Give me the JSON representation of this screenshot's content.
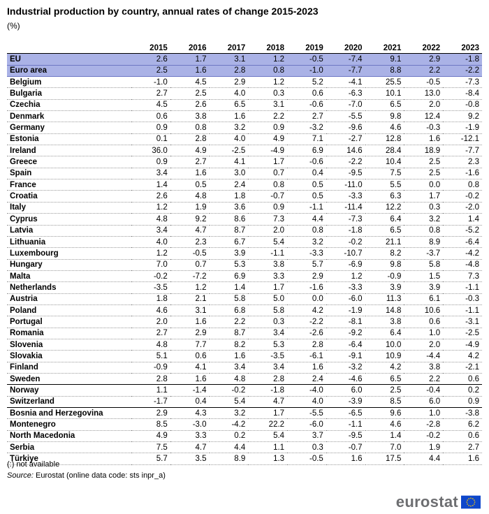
{
  "title": "Industrial production by country, annual rates of change 2015-2023",
  "unit": "(%)",
  "colors": {
    "aggregate_row": "#aab2e6",
    "logo_text": "#6d6e71",
    "flag_blue": "#0e47cb",
    "flag_star": "#ffcc00"
  },
  "columns": [
    "",
    "2015",
    "2016",
    "2017",
    "2018",
    "2019",
    "2020",
    "2021",
    "2022",
    "2023"
  ],
  "rows": [
    {
      "country": "EU",
      "values": [
        "2.6",
        "1.7",
        "3.1",
        "1.2",
        "-0.5",
        "-7.4",
        "9.1",
        "2.9",
        "-1.8"
      ]
    },
    {
      "country": "Euro area",
      "values": [
        "2.5",
        "1.6",
        "2.8",
        "0.8",
        "-1.0",
        "-7.7",
        "8.8",
        "2.2",
        "-2.2"
      ]
    },
    {
      "country": "Belgium",
      "values": [
        "-1.0",
        "4.5",
        "2.9",
        "1.2",
        "5.2",
        "-4.1",
        "25.5",
        "-0.5",
        "-7.3"
      ]
    },
    {
      "country": "Bulgaria",
      "values": [
        "2.7",
        "2.5",
        "4.0",
        "0.3",
        "0.6",
        "-6.3",
        "10.1",
        "13.0",
        "-8.4"
      ]
    },
    {
      "country": "Czechia",
      "values": [
        "4.5",
        "2.6",
        "6.5",
        "3.1",
        "-0.6",
        "-7.0",
        "6.5",
        "2.0",
        "-0.8"
      ]
    },
    {
      "country": "Denmark",
      "values": [
        "0.6",
        "3.8",
        "1.6",
        "2.2",
        "2.7",
        "-5.5",
        "9.8",
        "12.4",
        "9.2"
      ]
    },
    {
      "country": "Germany",
      "values": [
        "0.9",
        "0.8",
        "3.2",
        "0.9",
        "-3.2",
        "-9.6",
        "4.6",
        "-0.3",
        "-1.9"
      ]
    },
    {
      "country": "Estonia",
      "values": [
        "0.1",
        "2.8",
        "4.0",
        "4.9",
        "7.1",
        "-2.7",
        "12.8",
        "1.6",
        "-12.1"
      ]
    },
    {
      "country": "Ireland",
      "values": [
        "36.0",
        "4.9",
        "-2.5",
        "-4.9",
        "6.9",
        "14.6",
        "28.4",
        "18.9",
        "-7.7"
      ]
    },
    {
      "country": "Greece",
      "values": [
        "0.9",
        "2.7",
        "4.1",
        "1.7",
        "-0.6",
        "-2.2",
        "10.4",
        "2.5",
        "2.3"
      ]
    },
    {
      "country": "Spain",
      "values": [
        "3.4",
        "1.6",
        "3.0",
        "0.7",
        "0.4",
        "-9.5",
        "7.5",
        "2.5",
        "-1.6"
      ]
    },
    {
      "country": "France",
      "values": [
        "1.4",
        "0.5",
        "2.4",
        "0.8",
        "0.5",
        "-11.0",
        "5.5",
        "0.0",
        "0.8"
      ]
    },
    {
      "country": "Croatia",
      "values": [
        "2.6",
        "4.8",
        "1.8",
        "-0.7",
        "0.5",
        "-3.3",
        "6.3",
        "1.7",
        "-0.2"
      ]
    },
    {
      "country": "Italy",
      "values": [
        "1.2",
        "1.9",
        "3.6",
        "0.9",
        "-1.1",
        "-11.4",
        "12.2",
        "0.3",
        "-2.0"
      ]
    },
    {
      "country": "Cyprus",
      "values": [
        "4.8",
        "9.2",
        "8.6",
        "7.3",
        "4.4",
        "-7.3",
        "6.4",
        "3.2",
        "1.4"
      ]
    },
    {
      "country": "Latvia",
      "values": [
        "3.4",
        "4.7",
        "8.7",
        "2.0",
        "0.8",
        "-1.8",
        "6.5",
        "0.8",
        "-5.2"
      ]
    },
    {
      "country": "Lithuania",
      "values": [
        "4.0",
        "2.3",
        "6.7",
        "5.4",
        "3.2",
        "-0.2",
        "21.1",
        "8.9",
        "-6.4"
      ]
    },
    {
      "country": "Luxembourg",
      "values": [
        "1.2",
        "-0.5",
        "3.9",
        "-1.1",
        "-3.3",
        "-10.7",
        "8.2",
        "-3.7",
        "-4.2"
      ]
    },
    {
      "country": "Hungary",
      "values": [
        "7.0",
        "0.7",
        "5.3",
        "3.8",
        "5.7",
        "-6.9",
        "9.8",
        "5.8",
        "-4.8"
      ]
    },
    {
      "country": "Malta",
      "values": [
        "-0.2",
        "-7.2",
        "6.9",
        "3.3",
        "2.9",
        "1.2",
        "-0.9",
        "1.5",
        "7.3"
      ]
    },
    {
      "country": "Netherlands",
      "values": [
        "-3.5",
        "1.2",
        "1.4",
        "1.7",
        "-1.6",
        "-3.3",
        "3.9",
        "3.9",
        "-1.1"
      ]
    },
    {
      "country": "Austria",
      "values": [
        "1.8",
        "2.1",
        "5.8",
        "5.0",
        "0.0",
        "-6.0",
        "11.3",
        "6.1",
        "-0.3"
      ]
    },
    {
      "country": "Poland",
      "values": [
        "4.6",
        "3.1",
        "6.8",
        "5.8",
        "4.2",
        "-1.9",
        "14.8",
        "10.6",
        "-1.1"
      ]
    },
    {
      "country": "Portugal",
      "values": [
        "2.0",
        "1.6",
        "2.2",
        "0.3",
        "-2.2",
        "-8.1",
        "3.8",
        "0.6",
        "-3.1"
      ]
    },
    {
      "country": "Romania",
      "values": [
        "2.7",
        "2.9",
        "8.7",
        "3.4",
        "-2.6",
        "-9.2",
        "6.4",
        "1.0",
        "-2.5"
      ]
    },
    {
      "country": "Slovenia",
      "values": [
        "4.8",
        "7.7",
        "8.2",
        "5.3",
        "2.8",
        "-6.4",
        "10.0",
        "2.0",
        "-4.9"
      ]
    },
    {
      "country": "Slovakia",
      "values": [
        "5.1",
        "0.6",
        "1.6",
        "-3.5",
        "-6.1",
        "-9.1",
        "10.9",
        "-4.4",
        "4.2"
      ]
    },
    {
      "country": "Finland",
      "values": [
        "-0.9",
        "4.1",
        "3.4",
        "3.4",
        "1.6",
        "-3.2",
        "4.2",
        "3.8",
        "-2.1"
      ]
    },
    {
      "country": "Sweden",
      "values": [
        "2.8",
        "1.6",
        "4.8",
        "2.8",
        "2.4",
        "-4.6",
        "6.5",
        "2.2",
        "0.6"
      ]
    },
    {
      "country": "Norway",
      "group_start": true,
      "values": [
        "1.1",
        "-1.4",
        "-0.2",
        "-1.8",
        "-4.0",
        "6.0",
        "2.5",
        "-0.4",
        "0.2"
      ]
    },
    {
      "country": "Switzerland",
      "values": [
        "-1.7",
        "0.4",
        "5.4",
        "4.7",
        "4.0",
        "-3.9",
        "8.5",
        "6.0",
        "0.9"
      ]
    },
    {
      "country": "Bosnia and Herzegovina",
      "group_start": true,
      "values": [
        "2.9",
        "4.3",
        "3.2",
        "1.7",
        "-5.5",
        "-6.5",
        "9.6",
        "1.0",
        "-3.8"
      ]
    },
    {
      "country": "Montenegro",
      "values": [
        "8.5",
        "-3.0",
        "-4.2",
        "22.2",
        "-6.0",
        "-1.1",
        "4.6",
        "-2.8",
        "6.2"
      ]
    },
    {
      "country": "North Macedonia",
      "values": [
        "4.9",
        "3.3",
        "0.2",
        "5.4",
        "3.7",
        "-9.5",
        "1.4",
        "-0.2",
        "0.6"
      ]
    },
    {
      "country": "Serbia",
      "values": [
        "7.5",
        "4.7",
        "4.4",
        "1.1",
        "0.3",
        "-0.7",
        "7.0",
        "1.9",
        "2.7"
      ]
    },
    {
      "country": "Türkiye",
      "values": [
        "5.7",
        "3.5",
        "8.9",
        "1.3",
        "-0.5",
        "1.6",
        "17.5",
        "4.4",
        "1.6"
      ]
    }
  ],
  "note": "(:) not available",
  "source_label": "Source:",
  "source_text": " Eurostat (online data code: sts inpr_a)",
  "logo": "eurostat"
}
